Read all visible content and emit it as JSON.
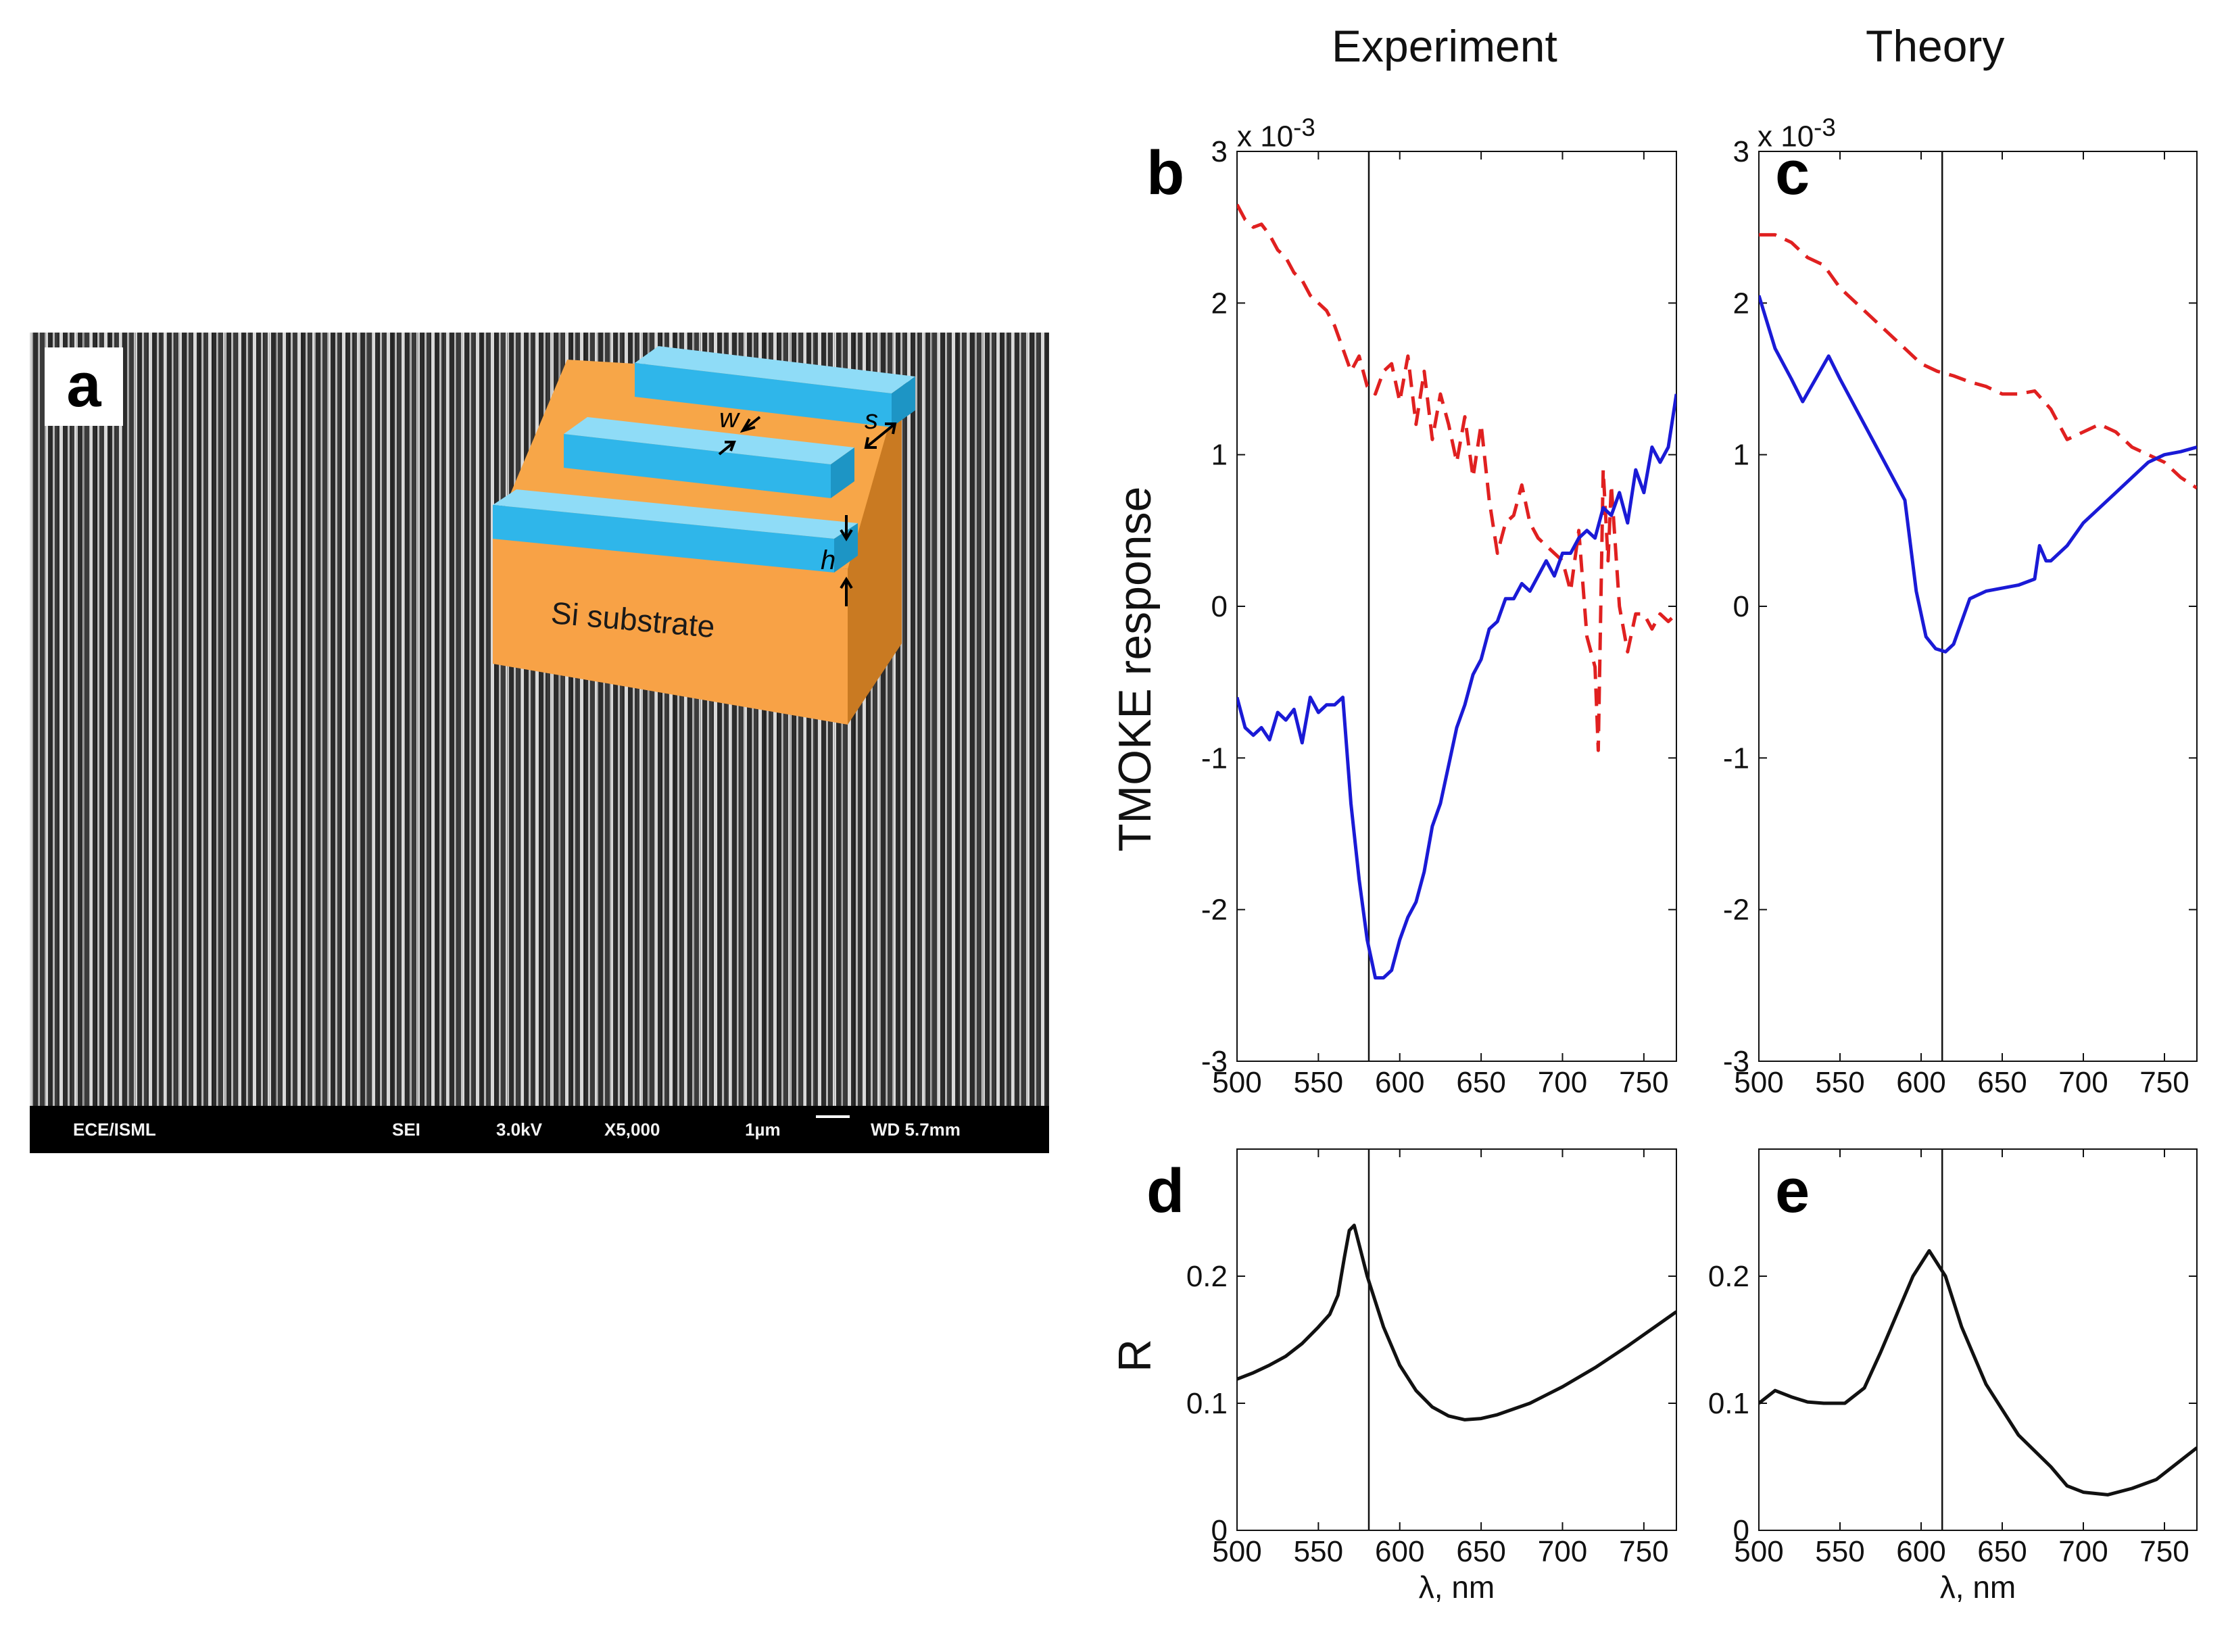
{
  "figure": {
    "panel_a": {
      "letter": "a",
      "sem_footer": {
        "lab": "ECE/ISML",
        "mode": "SEI",
        "voltage": "3.0kV",
        "magnification": "X5,000",
        "scale": "1µm",
        "working_distance": "WD 5.7mm"
      },
      "schematic": {
        "substrate_label": "Si substrate",
        "dim_w": "w",
        "dim_s": "s",
        "dim_h": "h",
        "colors": {
          "grating": "#2fb6ea",
          "grating_light": "#8fdcf7",
          "substrate": "#f7a648",
          "substrate_dark": "#c97a22"
        }
      }
    },
    "column_titles": {
      "experiment": "Experiment",
      "theory": "Theory"
    },
    "ylabels": {
      "tmoke": "TMOKE response",
      "reflectance": "R"
    },
    "exp_prefix": "x 10",
    "exp_power": "-3"
  },
  "chart_data": [
    {
      "id": "b",
      "letter": "b",
      "type": "line",
      "xlim": [
        500,
        770
      ],
      "ylim": [
        -3,
        3
      ],
      "xticks": [
        500,
        550,
        600,
        650,
        700,
        750
      ],
      "yticks": [
        -3,
        -2,
        -1,
        0,
        1,
        2,
        3
      ],
      "ytick_labels": [
        "-3",
        "-2",
        "-1",
        "0",
        "1",
        "2",
        "3"
      ],
      "vline": 581,
      "xlabel": "",
      "series": [
        {
          "name": "dashed",
          "color": "#e02020",
          "dashed": true,
          "x": [
            500,
            505,
            510,
            515,
            520,
            525,
            530,
            535,
            540,
            545,
            550,
            555,
            560,
            565,
            570,
            575,
            580,
            585,
            590,
            595,
            600,
            605,
            610,
            615,
            620,
            625,
            630,
            635,
            640,
            645,
            650,
            655,
            660,
            665,
            670,
            675,
            680,
            685,
            690,
            695,
            700,
            705,
            710,
            715,
            720,
            722,
            725,
            728,
            730,
            735,
            740,
            745,
            750,
            755,
            760,
            765,
            770
          ],
          "y": [
            2.65,
            2.55,
            2.5,
            2.52,
            2.45,
            2.35,
            2.3,
            2.2,
            2.15,
            2.05,
            2.0,
            1.95,
            1.85,
            1.7,
            1.55,
            1.65,
            1.45,
            1.4,
            1.55,
            1.6,
            1.35,
            1.65,
            1.2,
            1.55,
            1.1,
            1.4,
            1.2,
            0.95,
            1.25,
            0.85,
            1.2,
            0.7,
            0.35,
            0.55,
            0.6,
            0.8,
            0.55,
            0.45,
            0.4,
            0.35,
            0.3,
            0.1,
            0.5,
            -0.2,
            -0.4,
            -0.95,
            0.9,
            0.3,
            0.8,
            0.0,
            -0.3,
            -0.05,
            -0.05,
            -0.15,
            -0.05,
            -0.1,
            -0.05
          ]
        },
        {
          "name": "solid",
          "color": "#1a1ad6",
          "dashed": false,
          "x": [
            500,
            505,
            510,
            515,
            520,
            525,
            530,
            535,
            540,
            545,
            550,
            555,
            560,
            565,
            570,
            575,
            580,
            585,
            590,
            595,
            600,
            605,
            610,
            615,
            620,
            625,
            630,
            635,
            640,
            645,
            650,
            655,
            660,
            665,
            670,
            675,
            680,
            685,
            690,
            695,
            700,
            705,
            710,
            715,
            720,
            725,
            730,
            735,
            740,
            745,
            750,
            755,
            760,
            765,
            770
          ],
          "y": [
            -0.6,
            -0.8,
            -0.85,
            -0.8,
            -0.88,
            -0.7,
            -0.75,
            -0.68,
            -0.9,
            -0.6,
            -0.7,
            -0.65,
            -0.65,
            -0.6,
            -1.3,
            -1.8,
            -2.2,
            -2.45,
            -2.45,
            -2.4,
            -2.2,
            -2.05,
            -1.95,
            -1.75,
            -1.45,
            -1.3,
            -1.05,
            -0.8,
            -0.65,
            -0.45,
            -0.35,
            -0.15,
            -0.1,
            0.05,
            0.05,
            0.15,
            0.1,
            0.2,
            0.3,
            0.2,
            0.35,
            0.35,
            0.45,
            0.5,
            0.45,
            0.65,
            0.6,
            0.75,
            0.55,
            0.9,
            0.75,
            1.05,
            0.95,
            1.05,
            1.4
          ]
        }
      ]
    },
    {
      "id": "c",
      "letter": "c",
      "type": "line",
      "xlim": [
        500,
        770
      ],
      "ylim": [
        -3,
        3
      ],
      "xticks": [
        500,
        550,
        600,
        650,
        700,
        750
      ],
      "yticks": [
        -3,
        -2,
        -1,
        0,
        1,
        2,
        3
      ],
      "ytick_labels": [
        "-3",
        "-2",
        "-1",
        "0",
        "1",
        "2",
        "3"
      ],
      "vline": 613,
      "xlabel": "",
      "series": [
        {
          "name": "dashed",
          "color": "#e02020",
          "dashed": true,
          "x": [
            500,
            510,
            520,
            530,
            540,
            550,
            560,
            570,
            580,
            590,
            600,
            610,
            620,
            630,
            640,
            650,
            660,
            670,
            680,
            690,
            700,
            710,
            720,
            730,
            740,
            750,
            760,
            770
          ],
          "y": [
            2.45,
            2.45,
            2.4,
            2.3,
            2.25,
            2.1,
            2.0,
            1.9,
            1.8,
            1.7,
            1.6,
            1.55,
            1.52,
            1.48,
            1.45,
            1.4,
            1.4,
            1.42,
            1.3,
            1.1,
            1.15,
            1.2,
            1.15,
            1.05,
            1.0,
            0.95,
            0.85,
            0.78
          ]
        },
        {
          "name": "solid",
          "color": "#1a1ad6",
          "dashed": false,
          "x": [
            500,
            510,
            520,
            527,
            535,
            543,
            550,
            560,
            570,
            580,
            590,
            597,
            603,
            609,
            615,
            620,
            630,
            640,
            650,
            660,
            670,
            673,
            677,
            680,
            690,
            700,
            710,
            720,
            730,
            740,
            750,
            760,
            770
          ],
          "y": [
            2.05,
            1.7,
            1.5,
            1.35,
            1.5,
            1.65,
            1.5,
            1.3,
            1.1,
            0.9,
            0.7,
            0.1,
            -0.2,
            -0.28,
            -0.3,
            -0.25,
            0.05,
            0.1,
            0.12,
            0.14,
            0.18,
            0.4,
            0.3,
            0.3,
            0.4,
            0.55,
            0.65,
            0.75,
            0.85,
            0.95,
            1.0,
            1.02,
            1.05
          ]
        }
      ]
    },
    {
      "id": "d",
      "letter": "d",
      "type": "line",
      "xlim": [
        500,
        770
      ],
      "ylim": [
        0,
        0.3
      ],
      "xticks": [
        500,
        550,
        600,
        650,
        700,
        750
      ],
      "yticks": [
        0,
        0.1,
        0.2
      ],
      "ytick_labels": [
        "0",
        "0.1",
        "0.2"
      ],
      "vline": 581,
      "xlabel": "λ, nm",
      "series": [
        {
          "name": "R",
          "color": "#111111",
          "dashed": false,
          "x": [
            500,
            510,
            520,
            530,
            540,
            550,
            557,
            562,
            566,
            569,
            572,
            576,
            580,
            590,
            600,
            610,
            620,
            630,
            640,
            650,
            660,
            680,
            700,
            720,
            740,
            760,
            770
          ],
          "y": [
            0.119,
            0.124,
            0.13,
            0.137,
            0.147,
            0.16,
            0.17,
            0.185,
            0.215,
            0.236,
            0.24,
            0.22,
            0.2,
            0.16,
            0.13,
            0.11,
            0.097,
            0.09,
            0.087,
            0.088,
            0.091,
            0.1,
            0.113,
            0.128,
            0.145,
            0.163,
            0.172
          ]
        }
      ]
    },
    {
      "id": "e",
      "letter": "e",
      "type": "line",
      "xlim": [
        500,
        770
      ],
      "ylim": [
        0,
        0.3
      ],
      "xticks": [
        500,
        550,
        600,
        650,
        700,
        750
      ],
      "yticks": [
        0,
        0.1,
        0.2
      ],
      "ytick_labels": [
        "0",
        "0.1",
        "0.2"
      ],
      "vline": 613,
      "xlabel": "λ, nm",
      "series": [
        {
          "name": "R",
          "color": "#111111",
          "dashed": false,
          "x": [
            500,
            510,
            520,
            530,
            540,
            553,
            565,
            575,
            585,
            595,
            605,
            615,
            625,
            640,
            660,
            680,
            690,
            700,
            715,
            730,
            745,
            760,
            770
          ],
          "y": [
            0.1,
            0.11,
            0.105,
            0.101,
            0.1,
            0.1,
            0.112,
            0.14,
            0.17,
            0.2,
            0.22,
            0.2,
            0.16,
            0.115,
            0.075,
            0.05,
            0.035,
            0.03,
            0.028,
            0.033,
            0.04,
            0.055,
            0.065
          ]
        }
      ]
    }
  ]
}
